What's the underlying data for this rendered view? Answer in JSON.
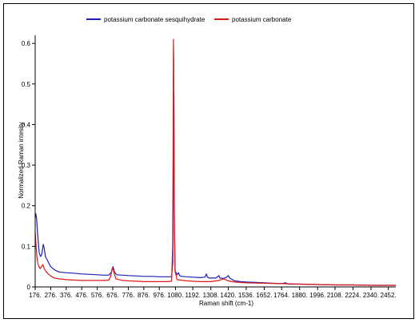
{
  "chart_data": {
    "type": "line",
    "xlabel": "Raman shift (cm-1)",
    "ylabel": "Normalized Raman intesity",
    "xlim": [
      176,
      2500
    ],
    "ylim": [
      0,
      0.62
    ],
    "x_ticks": [
      176,
      276,
      376,
      476,
      576,
      676,
      776,
      876,
      976,
      1080,
      1192,
      1308,
      1420,
      1536,
      1652,
      1764,
      1880,
      1996,
      2108,
      2224,
      2340,
      2452
    ],
    "x_tick_labels": [
      "176.",
      "276.",
      "376.",
      "476.",
      "576.",
      "676.",
      "776.",
      "876.",
      "976.",
      "1080.",
      "1192.",
      "1308.",
      "1420.",
      "1536.",
      "1652.",
      "1764.",
      "1880.",
      "1996.",
      "2108.",
      "2224.",
      "2340.",
      "2452."
    ],
    "y_ticks": [
      0,
      0.1,
      0.2,
      0.3,
      0.4,
      0.5,
      0.6
    ],
    "y_tick_labels": [
      "0",
      "0.1",
      "0.2",
      "0.3",
      "0.4",
      "0.5",
      "0.6"
    ],
    "grid": false,
    "legend_position": "top",
    "series": [
      {
        "name": "potassium carbonate sesquihydrate",
        "color": "#1f1fb4",
        "points": [
          [
            176,
            0.17
          ],
          [
            180,
            0.18
          ],
          [
            185,
            0.17
          ],
          [
            190,
            0.14
          ],
          [
            196,
            0.11
          ],
          [
            202,
            0.085
          ],
          [
            210,
            0.075
          ],
          [
            218,
            0.08
          ],
          [
            224,
            0.095
          ],
          [
            228,
            0.105
          ],
          [
            234,
            0.095
          ],
          [
            242,
            0.075
          ],
          [
            252,
            0.068
          ],
          [
            262,
            0.06
          ],
          [
            276,
            0.05
          ],
          [
            300,
            0.042
          ],
          [
            330,
            0.037
          ],
          [
            376,
            0.035
          ],
          [
            420,
            0.034
          ],
          [
            476,
            0.032
          ],
          [
            530,
            0.031
          ],
          [
            576,
            0.03
          ],
          [
            620,
            0.029
          ],
          [
            650,
            0.029
          ],
          [
            665,
            0.035
          ],
          [
            672,
            0.045
          ],
          [
            678,
            0.05
          ],
          [
            686,
            0.038
          ],
          [
            700,
            0.03
          ],
          [
            740,
            0.029
          ],
          [
            776,
            0.028
          ],
          [
            830,
            0.027
          ],
          [
            876,
            0.026
          ],
          [
            930,
            0.026
          ],
          [
            976,
            0.025
          ],
          [
            1030,
            0.025
          ],
          [
            1055,
            0.025
          ],
          [
            1063,
            0.06
          ],
          [
            1066,
            0.25
          ],
          [
            1068,
            0.53
          ],
          [
            1070,
            0.47
          ],
          [
            1073,
            0.15
          ],
          [
            1078,
            0.04
          ],
          [
            1090,
            0.03
          ],
          [
            1100,
            0.035
          ],
          [
            1106,
            0.028
          ],
          [
            1120,
            0.026
          ],
          [
            1150,
            0.025
          ],
          [
            1192,
            0.024
          ],
          [
            1240,
            0.023
          ],
          [
            1270,
            0.024
          ],
          [
            1280,
            0.032
          ],
          [
            1286,
            0.024
          ],
          [
            1300,
            0.022
          ],
          [
            1308,
            0.022
          ],
          [
            1340,
            0.022
          ],
          [
            1360,
            0.028
          ],
          [
            1366,
            0.022
          ],
          [
            1390,
            0.021
          ],
          [
            1410,
            0.024
          ],
          [
            1420,
            0.028
          ],
          [
            1430,
            0.022
          ],
          [
            1460,
            0.015
          ],
          [
            1500,
            0.013
          ],
          [
            1536,
            0.012
          ],
          [
            1600,
            0.011
          ],
          [
            1652,
            0.01
          ],
          [
            1700,
            0.009
          ],
          [
            1764,
            0.008
          ],
          [
            1790,
            0.01
          ],
          [
            1810,
            0.007
          ],
          [
            1880,
            0.007
          ],
          [
            1996,
            0.006
          ],
          [
            2108,
            0.005
          ],
          [
            2224,
            0.005
          ],
          [
            2340,
            0.004
          ],
          [
            2452,
            0.004
          ],
          [
            2500,
            0.004
          ]
        ]
      },
      {
        "name": "potassium carbonate",
        "color": "#dd1a1a",
        "points": [
          [
            176,
            0.135
          ],
          [
            180,
            0.11
          ],
          [
            186,
            0.08
          ],
          [
            192,
            0.06
          ],
          [
            200,
            0.05
          ],
          [
            208,
            0.045
          ],
          [
            216,
            0.05
          ],
          [
            226,
            0.055
          ],
          [
            234,
            0.045
          ],
          [
            246,
            0.038
          ],
          [
            260,
            0.032
          ],
          [
            276,
            0.027
          ],
          [
            300,
            0.022
          ],
          [
            330,
            0.02
          ],
          [
            376,
            0.018
          ],
          [
            420,
            0.017
          ],
          [
            476,
            0.016
          ],
          [
            530,
            0.016
          ],
          [
            576,
            0.016
          ],
          [
            620,
            0.016
          ],
          [
            650,
            0.017
          ],
          [
            662,
            0.025
          ],
          [
            670,
            0.04
          ],
          [
            676,
            0.048
          ],
          [
            684,
            0.035
          ],
          [
            696,
            0.02
          ],
          [
            740,
            0.016
          ],
          [
            776,
            0.015
          ],
          [
            830,
            0.014
          ],
          [
            876,
            0.013
          ],
          [
            930,
            0.013
          ],
          [
            976,
            0.013
          ],
          [
            1030,
            0.013
          ],
          [
            1055,
            0.014
          ],
          [
            1062,
            0.1
          ],
          [
            1065,
            0.35
          ],
          [
            1067,
            0.61
          ],
          [
            1069,
            0.56
          ],
          [
            1072,
            0.2
          ],
          [
            1077,
            0.04
          ],
          [
            1090,
            0.018
          ],
          [
            1150,
            0.015
          ],
          [
            1192,
            0.014
          ],
          [
            1240,
            0.013
          ],
          [
            1308,
            0.013
          ],
          [
            1360,
            0.016
          ],
          [
            1390,
            0.02
          ],
          [
            1420,
            0.015
          ],
          [
            1460,
            0.012
          ],
          [
            1536,
            0.01
          ],
          [
            1652,
            0.009
          ],
          [
            1764,
            0.008
          ],
          [
            1880,
            0.007
          ],
          [
            1996,
            0.006
          ],
          [
            2108,
            0.005
          ],
          [
            2224,
            0.005
          ],
          [
            2340,
            0.004
          ],
          [
            2452,
            0.004
          ],
          [
            2500,
            0.004
          ]
        ]
      }
    ]
  }
}
